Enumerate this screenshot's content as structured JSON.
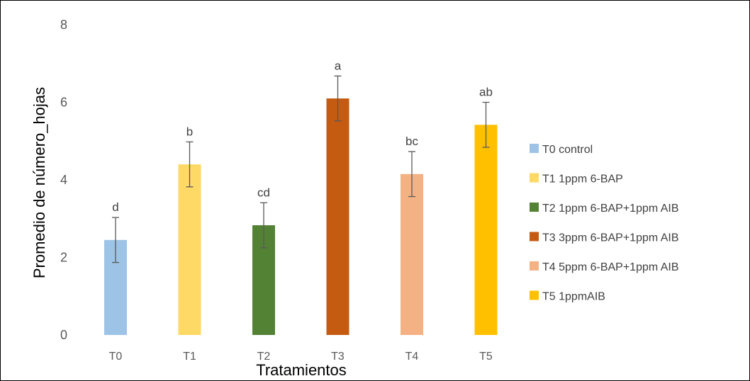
{
  "chart_data": {
    "type": "bar",
    "title": "",
    "xlabel": "Tratamientos",
    "ylabel": "Promedio de número_hojas",
    "ylim": [
      0,
      8
    ],
    "yticks": [
      0,
      2,
      4,
      6,
      8
    ],
    "grid": false,
    "legend_position": "right",
    "categories": [
      "T0",
      "T1",
      "T2",
      "T3",
      "T4",
      "T5"
    ],
    "values": [
      2.45,
      4.4,
      2.83,
      6.1,
      4.15,
      5.42
    ],
    "errors": [
      0.58,
      0.58,
      0.58,
      0.58,
      0.58,
      0.58
    ],
    "significance_letters": [
      "d",
      "b",
      "cd",
      "a",
      "bc",
      "ab"
    ],
    "legend": [
      "T0 control",
      "T1 1ppm 6-BAP",
      "T2 1ppm 6-BAP+1ppm AIB",
      "T3 3ppm 6-BAP+1ppm AIB",
      "T4 5ppm 6-BAP+1ppm AIB",
      "T5 1ppmAIB"
    ],
    "colors": [
      "#9DC3E6",
      "#FFD966",
      "#548235",
      "#C55A11",
      "#F4B183",
      "#FFC000"
    ]
  }
}
